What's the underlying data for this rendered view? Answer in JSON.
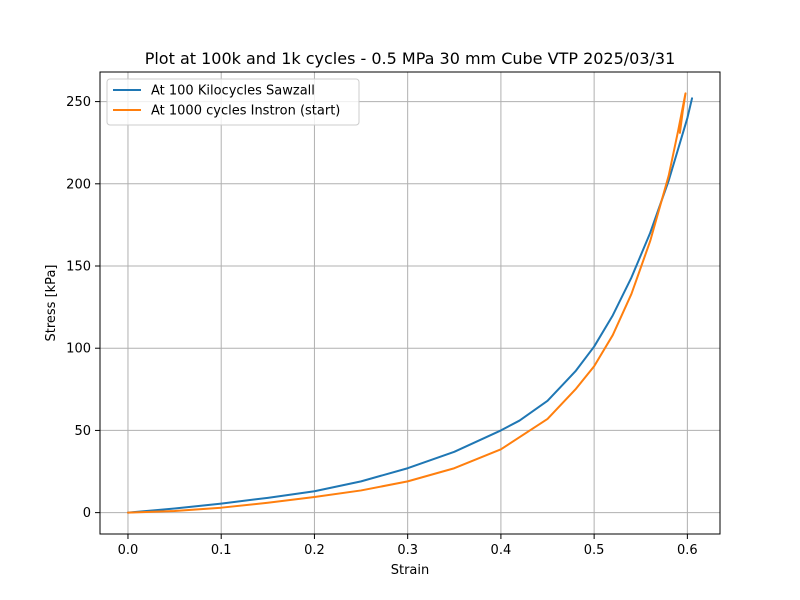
{
  "chart_data": {
    "type": "line",
    "title": "Plot at 100k and 1k cycles - 0.5 MPa 30 mm Cube VTP 2025/03/31",
    "xlabel": "Strain",
    "ylabel": "Stress [kPa]",
    "xlim": [
      -0.03,
      0.635
    ],
    "ylim": [
      -13,
      268
    ],
    "xticks": [
      0.0,
      0.1,
      0.2,
      0.3,
      0.4,
      0.5,
      0.6
    ],
    "xtick_labels": [
      "0.0",
      "0.1",
      "0.2",
      "0.3",
      "0.4",
      "0.5",
      "0.6"
    ],
    "yticks": [
      0,
      50,
      100,
      150,
      200,
      250
    ],
    "ytick_labels": [
      "0",
      "50",
      "100",
      "150",
      "200",
      "250"
    ],
    "grid": true,
    "legend_position": "top-left",
    "series": [
      {
        "name": "At 100 Kilocycles Sawzall",
        "color": "#1f77b4",
        "x": [
          0.0,
          0.05,
          0.1,
          0.15,
          0.2,
          0.25,
          0.3,
          0.35,
          0.4,
          0.42,
          0.45,
          0.48,
          0.5,
          0.52,
          0.54,
          0.56,
          0.58,
          0.6,
          0.605
        ],
        "y": [
          0,
          2.5,
          5.5,
          9,
          13,
          19,
          27,
          37,
          50,
          56,
          68,
          86,
          101,
          120,
          143,
          170,
          202,
          240,
          252
        ]
      },
      {
        "name": "At 1000 cycles Instron (start)",
        "color": "#ff7f0e",
        "x": [
          0.0,
          0.05,
          0.1,
          0.15,
          0.2,
          0.25,
          0.3,
          0.35,
          0.4,
          0.45,
          0.48,
          0.5,
          0.52,
          0.54,
          0.56,
          0.58,
          0.59,
          0.598,
          0.595,
          0.592
        ],
        "y": [
          0,
          1,
          3,
          6,
          9.5,
          13.5,
          19,
          27,
          38.5,
          57,
          75,
          89,
          108,
          133,
          165,
          205,
          232,
          255,
          244,
          231
        ]
      }
    ]
  }
}
